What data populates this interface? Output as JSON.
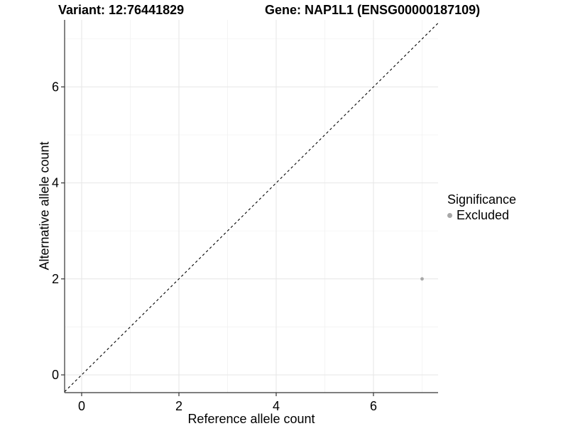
{
  "chart_data": {
    "type": "scatter",
    "title_left": "Variant: 12:76441829",
    "title_right": "Gene: NAP1L1 (ENSG00000187109)",
    "xlabel": "Reference allele count",
    "ylabel": "Alternative allele count",
    "xlim": [
      -0.35,
      7.33
    ],
    "ylim": [
      -0.37,
      7.4
    ],
    "x_major_ticks": [
      0,
      2,
      4,
      6
    ],
    "x_minor_ticks": [
      1,
      3,
      5,
      7
    ],
    "y_major_ticks": [
      0,
      2,
      4,
      6
    ],
    "y_minor_ticks": [
      1,
      3,
      5,
      7
    ],
    "grid": true,
    "identity_line": {
      "equation": "y = x",
      "style": "dashed",
      "color": "#000000"
    },
    "series": [
      {
        "name": "Excluded",
        "color": "#a8a8a8",
        "points": [
          {
            "x": 7,
            "y": 2
          }
        ]
      }
    ],
    "legend": {
      "title": "Significance",
      "position": "right",
      "entries": [
        {
          "label": "Excluded",
          "color": "#a8a8a8"
        }
      ]
    },
    "colors": {
      "background": "#ffffff",
      "grid_major": "#e6e6e6",
      "grid_minor": "#f0f0f0",
      "axis_line": "#333333",
      "text": "#000000"
    }
  }
}
